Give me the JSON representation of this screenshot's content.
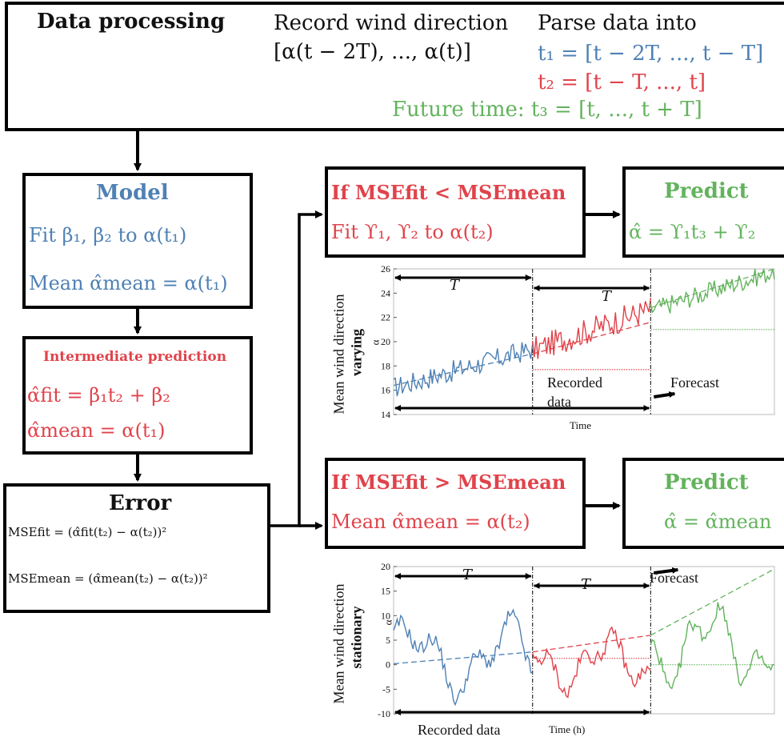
{
  "header": {
    "title": "Data processing",
    "record_line1": "Record wind direction",
    "record_line2": "[α(t − 2T), ..., α(t)]",
    "parse_line": "Parse data into",
    "t1": "t₁ = [t − 2T, ..., t − T]",
    "t2": "t₂ = [t − T, ..., t]",
    "t3": "Future time: t₃ = [t, ..., t + T]"
  },
  "model": {
    "title": "Model",
    "fit": "Fit β₁,  β₂ to α(t₁)",
    "mean": "Mean α̂mean = α(t₁)"
  },
  "intermediate": {
    "title": "Intermediate prediction",
    "fit": "α̂fit = β₁t₂ + β₂",
    "mean": "α̂mean = α(t₁)"
  },
  "error": {
    "title": "Error",
    "mse_fit": "MSEfit = (α̂fit(t₂) − α(t₂))²",
    "mse_mean": "MSEmean = (α̂mean(t₂) − α(t₂))²"
  },
  "cond_fit": {
    "title": "If MSEfit < MSEmean",
    "body": "Fit ϒ₁,  ϒ₂ to α(t₂)"
  },
  "cond_mean": {
    "title": "If MSEfit > MSEmean",
    "body": "Mean α̂mean = α(t₂)"
  },
  "predict_fit": {
    "title": "Predict",
    "body": "α̂ = ϒ₁t₃ + ϒ₂"
  },
  "predict_mean": {
    "title": "Predict",
    "body": "α̂ = α̂mean"
  },
  "colors": {
    "blue": "#4f81b4",
    "red": "#e0434b",
    "green": "#63b35d",
    "black": "#000000"
  },
  "chart_data": [
    {
      "type": "line",
      "ylabel_line1": "Mean wind direction",
      "ylabel_line2": "varying",
      "ylabel_axis": "α",
      "xlabel": "Time",
      "ylim": [
        14,
        26
      ],
      "yticks": [
        "14",
        "16",
        "18",
        "20",
        "22",
        "24",
        "26"
      ],
      "span_label": "T",
      "annotations": [
        "Recorded",
        "data",
        "Forecast"
      ]
    },
    {
      "type": "line",
      "ylabel_line1": "Mean wind direction",
      "ylabel_line2": "stationary",
      "ylabel_axis": "α",
      "xlabel": "Time (h)",
      "ylim": [
        -10,
        20
      ],
      "yticks": [
        "-10",
        "-5",
        "0",
        "5",
        "10",
        "15",
        "20"
      ],
      "span_label": "T",
      "annotations": [
        "Forecast",
        "Recorded data"
      ]
    }
  ]
}
